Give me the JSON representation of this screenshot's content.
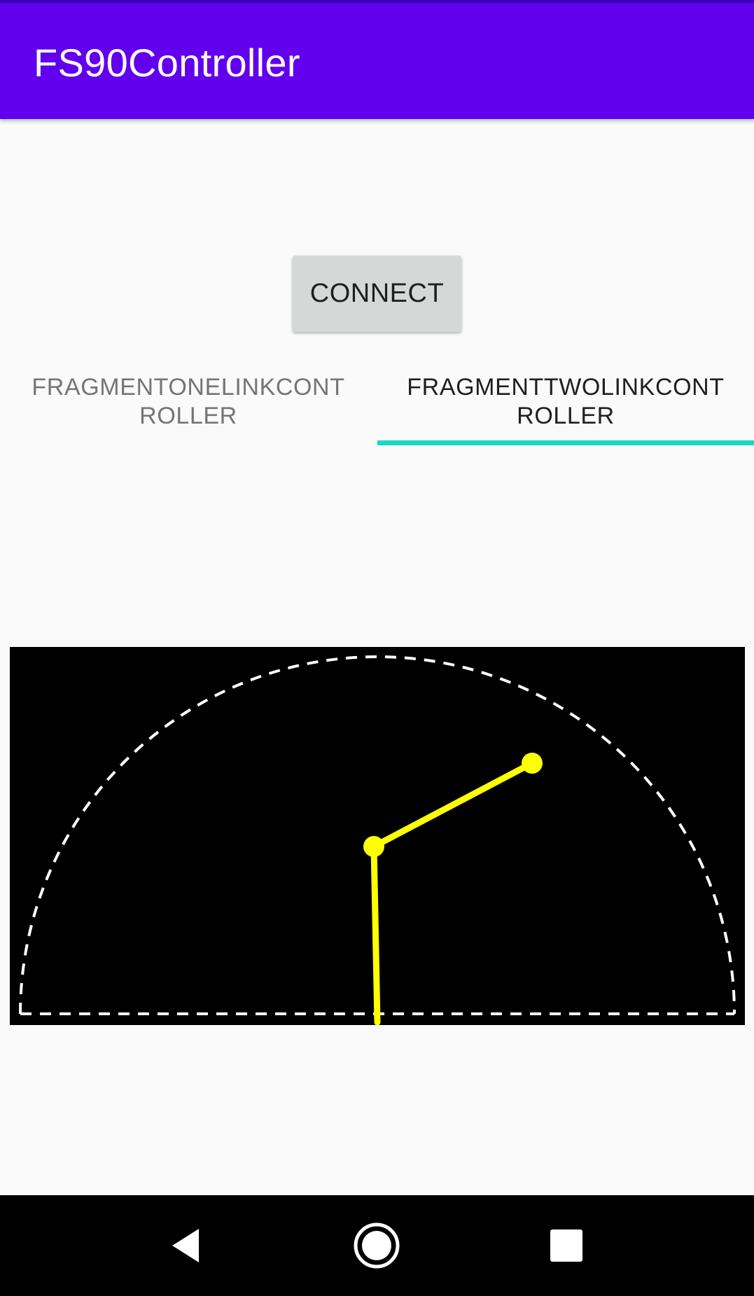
{
  "app_bar": {
    "title": "FS90Controller",
    "color": "#6200ee"
  },
  "connect": {
    "label": "CONNECT"
  },
  "tabs": [
    {
      "label": "FRAGMENTONELINKCONTROLLER",
      "selected": false
    },
    {
      "label": "FRAGMENTTWOLINKCONTROLLER",
      "selected": true
    }
  ],
  "tab_indicator_color": "#1bd7c6",
  "link_canvas": {
    "background": "#000000",
    "arc_color": "#ffffff",
    "link_color": "#ffff00"
  },
  "nav": {
    "icons": [
      "back-icon",
      "home-icon",
      "recents-icon"
    ]
  }
}
